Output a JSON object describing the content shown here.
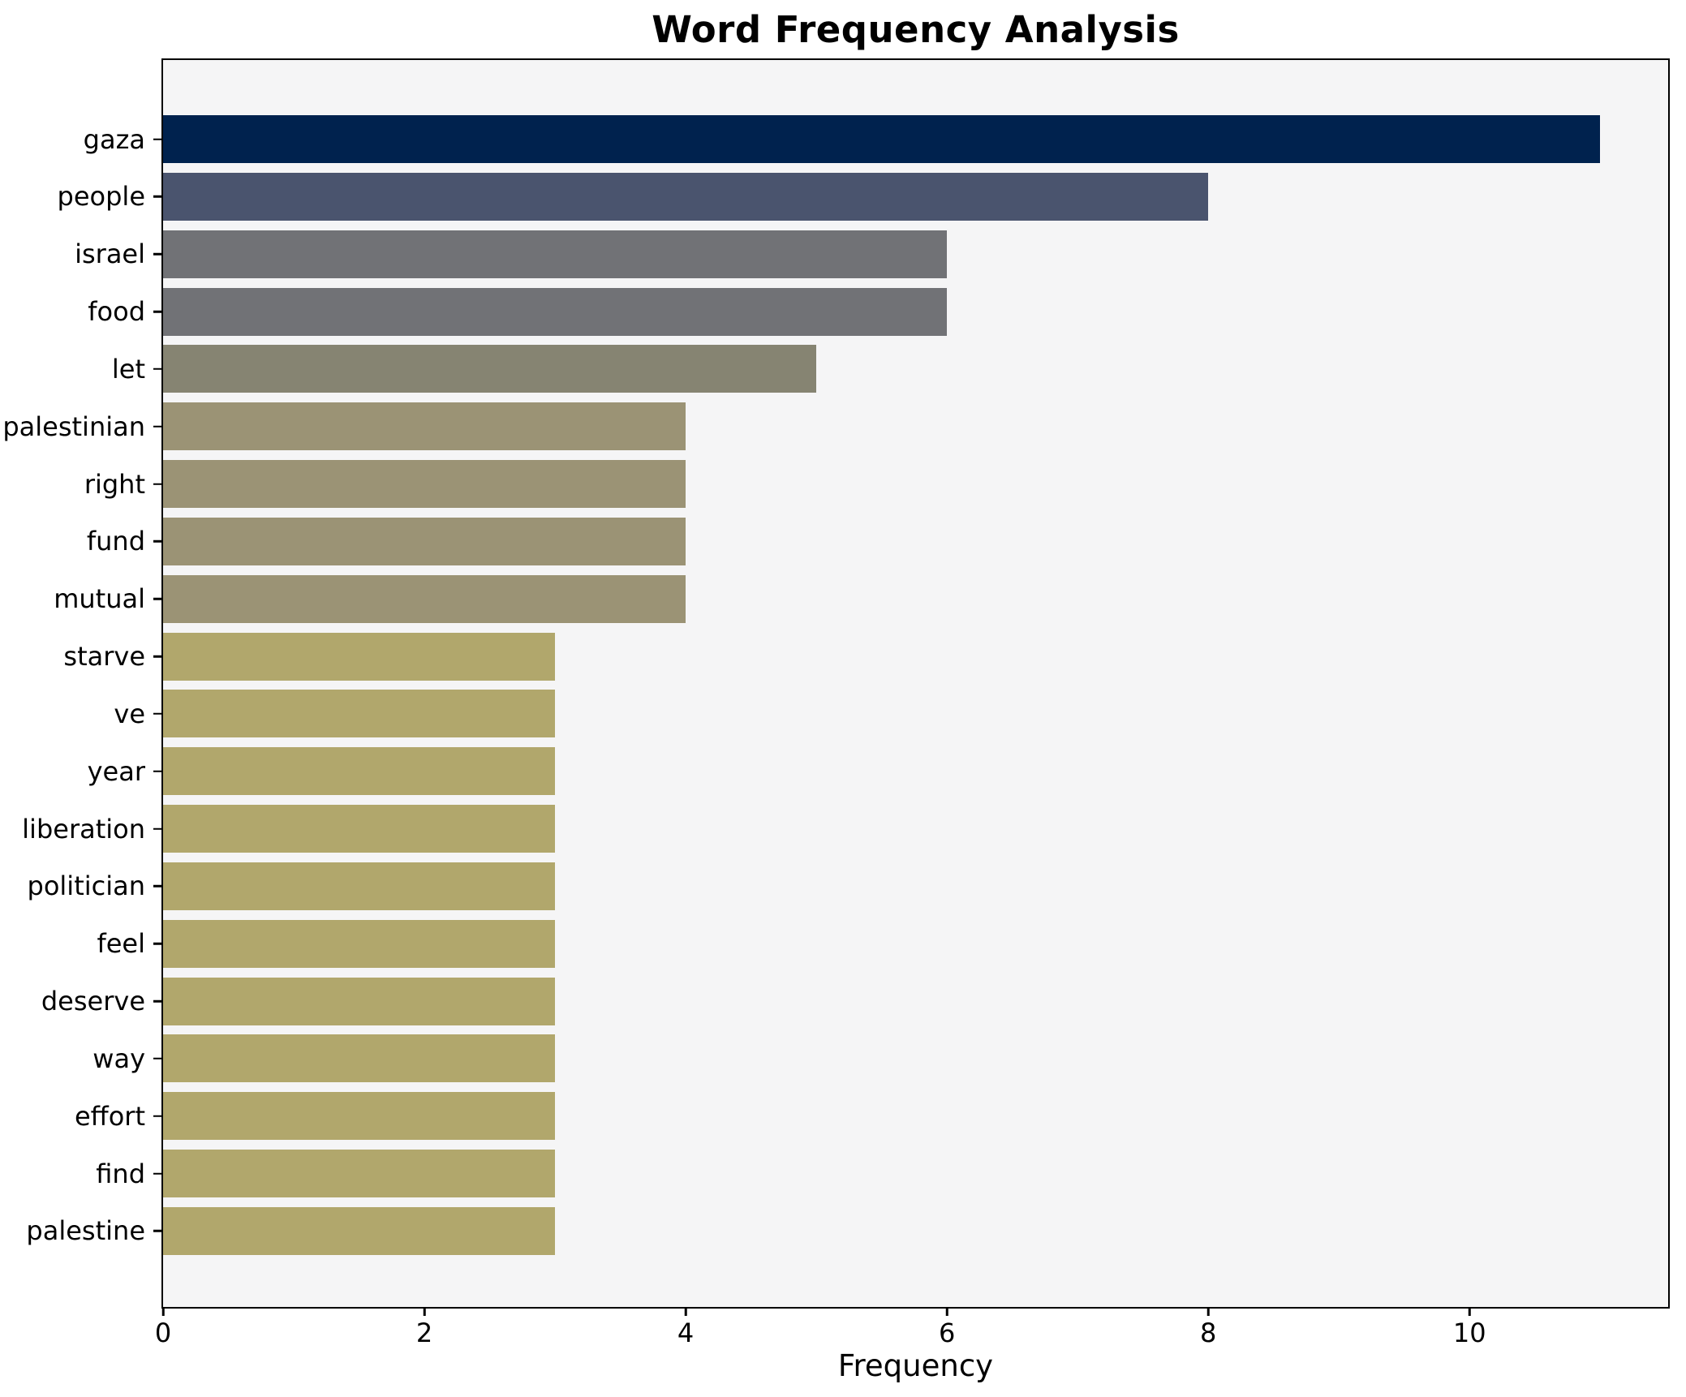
{
  "chart_data": {
    "type": "bar",
    "orientation": "horizontal",
    "title": "Word Frequency Analysis",
    "xlabel": "Frequency",
    "ylabel": "",
    "categories": [
      "gaza",
      "people",
      "israel",
      "food",
      "let",
      "palestinian",
      "right",
      "fund",
      "mutual",
      "starve",
      "ve",
      "year",
      "liberation",
      "politician",
      "feel",
      "deserve",
      "way",
      "effort",
      "find",
      "palestine"
    ],
    "values": [
      11,
      8,
      6,
      6,
      5,
      4,
      4,
      4,
      4,
      3,
      3,
      3,
      3,
      3,
      3,
      3,
      3,
      3,
      3,
      3
    ],
    "bar_colors": [
      "#00224e",
      "#4a546e",
      "#717276",
      "#717276",
      "#868472",
      "#9b9375",
      "#9b9375",
      "#9b9375",
      "#9b9375",
      "#b1a76c",
      "#b1a76c",
      "#b1a76c",
      "#b1a76c",
      "#b1a76c",
      "#b1a76c",
      "#b1a76c",
      "#b1a76c",
      "#b1a76c",
      "#b1a76c",
      "#b1a76c"
    ],
    "xlim": [
      0,
      11.52
    ],
    "xticks": [
      0,
      2,
      4,
      6,
      8,
      10
    ],
    "grid": false,
    "legend": null,
    "plot_background": "#f5f5f6",
    "figure_background": "#ffffff",
    "axis_color": "#000000",
    "text_color": "#000000"
  }
}
